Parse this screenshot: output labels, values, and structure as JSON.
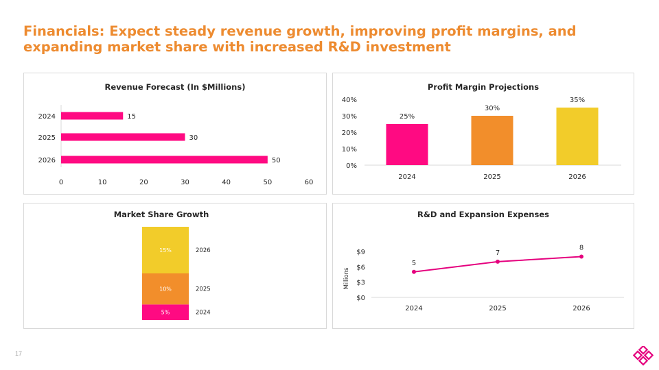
{
  "slide": {
    "title": "Financials: Expect steady revenue growth, improving profit margins, and expanding market share with increased R&D investment",
    "page_number": "17",
    "logo_icon": "diamond-cluster-icon"
  },
  "colors": {
    "pink": "#FF0A82",
    "orange": "#F28E2B",
    "yellow": "#F2CC2A",
    "accent_title": "#ED8B30",
    "axis": "#D9D9D9"
  },
  "chart_data": [
    {
      "type": "bar",
      "orientation": "horizontal",
      "title": "Revenue Forecast (In $Millions)",
      "categories": [
        "2024",
        "2025",
        "2026"
      ],
      "values": [
        15,
        30,
        50
      ],
      "data_labels": [
        "15",
        "30",
        "50"
      ],
      "xlim": [
        0,
        60
      ],
      "x_ticks": [
        "0",
        "10",
        "20",
        "30",
        "40",
        "50",
        "60"
      ],
      "color": "#FF0A82"
    },
    {
      "type": "bar",
      "orientation": "vertical",
      "title": "Profit Margin Projections",
      "categories": [
        "2024",
        "2025",
        "2026"
      ],
      "values": [
        25,
        30,
        35
      ],
      "data_labels": [
        "25%",
        "30%",
        "35%"
      ],
      "ylim": [
        0,
        40
      ],
      "y_ticks": [
        "0%",
        "10%",
        "20%",
        "30%",
        "40%"
      ],
      "colors": [
        "#FF0A82",
        "#F28E2B",
        "#F2CC2A"
      ]
    },
    {
      "type": "bar",
      "orientation": "stacked",
      "title": "Market Share Growth",
      "categories": [
        "2024",
        "2025",
        "2026"
      ],
      "values": [
        5,
        10,
        15
      ],
      "data_labels": [
        "5%",
        "10%",
        "15%"
      ],
      "colors": [
        "#FF0A82",
        "#F28E2B",
        "#F2CC2A"
      ]
    },
    {
      "type": "line",
      "title": "R&D and Expansion Expenses",
      "ylabel": "Millions",
      "categories": [
        "2024",
        "2025",
        "2026"
      ],
      "values": [
        5,
        7,
        8
      ],
      "data_labels": [
        "5",
        "7",
        "8"
      ],
      "ylim": [
        0,
        9
      ],
      "y_ticks": [
        "$0",
        "$3",
        "$6",
        "$9"
      ],
      "color": "#E5007E"
    }
  ]
}
